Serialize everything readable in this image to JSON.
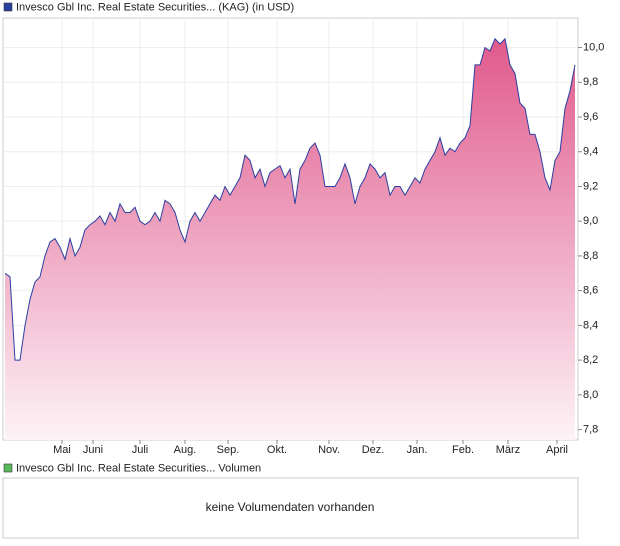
{
  "chart_data": {
    "type": "area",
    "series": [
      {
        "name": "Invesco Gbl Inc. Real Estate Securities... (KAG) (in USD)",
        "color": "#2b3fa0",
        "values": [
          8.7,
          8.68,
          8.2,
          8.2,
          8.4,
          8.55,
          8.65,
          8.68,
          8.8,
          8.88,
          8.9,
          8.85,
          8.78,
          8.9,
          8.8,
          8.85,
          8.95,
          8.98,
          9.0,
          9.03,
          8.98,
          9.05,
          9.0,
          9.1,
          9.05,
          9.05,
          9.08,
          9.0,
          8.98,
          9.0,
          9.05,
          9.0,
          9.12,
          9.1,
          9.05,
          8.95,
          8.88,
          9.0,
          9.05,
          9.0,
          9.05,
          9.1,
          9.15,
          9.12,
          9.2,
          9.15,
          9.2,
          9.25,
          9.38,
          9.35,
          9.25,
          9.3,
          9.2,
          9.28,
          9.3,
          9.32,
          9.25,
          9.3,
          9.1,
          9.3,
          9.35,
          9.42,
          9.45,
          9.38,
          9.2,
          9.2,
          9.2,
          9.25,
          9.33,
          9.25,
          9.1,
          9.2,
          9.25,
          9.33,
          9.3,
          9.25,
          9.28,
          9.15,
          9.2,
          9.2,
          9.15,
          9.2,
          9.25,
          9.22,
          9.3,
          9.35,
          9.4,
          9.48,
          9.38,
          9.42,
          9.4,
          9.45,
          9.48,
          9.55,
          9.9,
          9.9,
          10.0,
          9.98,
          10.05,
          10.02,
          10.05,
          9.9,
          9.85,
          9.68,
          9.65,
          9.5,
          9.5,
          9.4,
          9.25,
          9.18,
          9.35,
          9.4,
          9.65,
          9.75,
          9.9
        ]
      }
    ],
    "xlim": [
      -0.4,
      114.6
    ],
    "xticks": [
      {
        "value": 11.4,
        "label": "Mai"
      },
      {
        "value": 17.6,
        "label": "Juni"
      },
      {
        "value": 27,
        "label": "Juli"
      },
      {
        "value": 36,
        "label": "Aug."
      },
      {
        "value": 44.6,
        "label": "Sep."
      },
      {
        "value": 54.4,
        "label": "Okt."
      },
      {
        "value": 64.8,
        "label": "Nov."
      },
      {
        "value": 73.6,
        "label": "Dez."
      },
      {
        "value": 82.4,
        "label": "Jan."
      },
      {
        "value": 91.6,
        "label": "Feb."
      },
      {
        "value": 100.6,
        "label": "März"
      },
      {
        "value": 110.4,
        "label": "April"
      }
    ],
    "ylim": [
      7.74,
      10.17
    ],
    "yticks": [
      {
        "value": 7.8,
        "label": "7,8"
      },
      {
        "value": 8.0,
        "label": "8,0"
      },
      {
        "value": 8.2,
        "label": "8,2"
      },
      {
        "value": 8.4,
        "label": "8,4"
      },
      {
        "value": 8.6,
        "label": "8,6"
      },
      {
        "value": 8.8,
        "label": "8,8"
      },
      {
        "value": 9.0,
        "label": "9,0"
      },
      {
        "value": 9.2,
        "label": "9,2"
      },
      {
        "value": 9.4,
        "label": "9,4"
      },
      {
        "value": 9.6,
        "label": "9,6"
      },
      {
        "value": 9.8,
        "label": "9,8"
      },
      {
        "value": 10.0,
        "label": "10,0"
      }
    ],
    "grid": true
  },
  "volume_panel": {
    "legend": "Invesco Gbl Inc. Real Estate Securities... Volumen",
    "color": "#5cb85c",
    "message": "keine Volumendaten vorhanden"
  }
}
